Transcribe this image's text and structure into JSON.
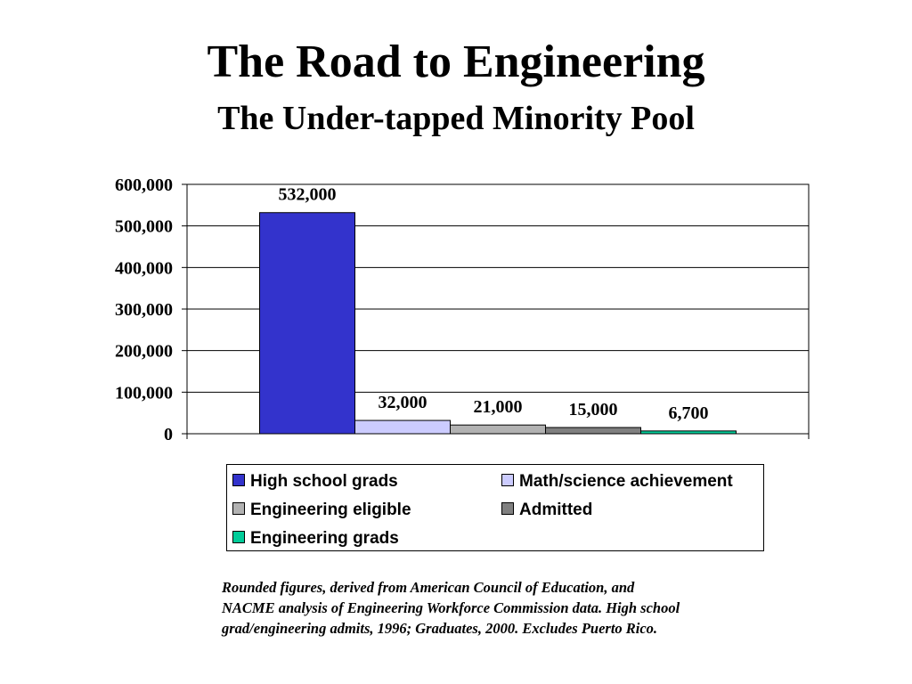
{
  "title": "The Road to Engineering",
  "subtitle": "The Under-tapped Minority Pool",
  "chart_data": {
    "type": "bar",
    "categories": [
      "High school grads",
      "Math/science achievement",
      "Engineering eligible",
      "Admitted",
      "Engineering grads"
    ],
    "values": [
      532000,
      32000,
      21000,
      15000,
      6700
    ],
    "data_labels": [
      "532,000",
      "32,000",
      "21,000",
      "15,000",
      "6,700"
    ],
    "colors": [
      "#3333cc",
      "#ccccff",
      "#b2b2b2",
      "#808080",
      "#00cc99"
    ],
    "y_ticks": [
      0,
      100000,
      200000,
      300000,
      400000,
      500000,
      600000
    ],
    "y_tick_labels": [
      "0",
      "100,000",
      "200,000",
      "300,000",
      "400,000",
      "500,000",
      "600,000"
    ],
    "ylim": [
      0,
      600000
    ],
    "grid": true,
    "legend_position": "bottom",
    "legend_entries": [
      "High school grads",
      "Math/science achievement",
      "Engineering eligible",
      "Admitted",
      "Engineering grads"
    ]
  },
  "caption_lines": [
    "Rounded figures, derived from American Council of Education, and",
    "NACME analysis of Engineering Workforce Commission data.  High school",
    "grad/engineering admits, 1996; Graduates, 2000.  Excludes Puerto Rico."
  ]
}
